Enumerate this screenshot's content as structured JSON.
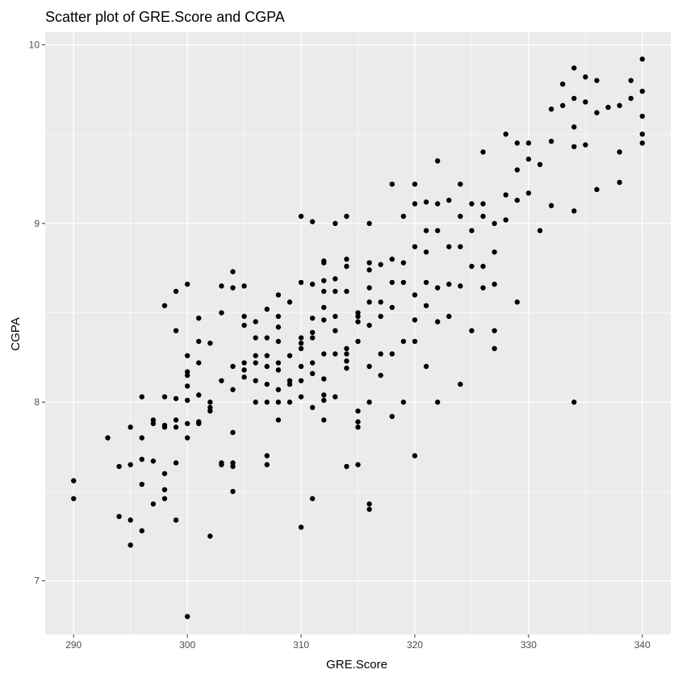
{
  "chart_data": {
    "type": "scatter",
    "title": "Scatter plot of GRE.Score and CGPA",
    "xlabel": "GRE.Score",
    "ylabel": "CGPA",
    "xlim": [
      287.5,
      342.5
    ],
    "ylim": [
      6.7,
      10.07
    ],
    "x_ticks": [
      290,
      300,
      310,
      320,
      330,
      340
    ],
    "y_ticks": [
      7,
      8,
      9,
      10
    ],
    "x_tick_labels": [
      "290",
      "300",
      "310",
      "320",
      "330",
      "340"
    ],
    "y_tick_labels": [
      "7",
      "8",
      "9",
      "10"
    ],
    "grid": true,
    "background": "#ebebeb",
    "grid_color": "#ffffff",
    "point_color": "#000000",
    "points": [
      [
        290,
        7.56
      ],
      [
        290,
        7.46
      ],
      [
        293,
        7.8
      ],
      [
        294,
        7.64
      ],
      [
        294,
        7.36
      ],
      [
        295,
        7.86
      ],
      [
        295,
        7.65
      ],
      [
        295,
        7.34
      ],
      [
        295,
        7.2
      ],
      [
        296,
        8.03
      ],
      [
        296,
        7.8
      ],
      [
        296,
        7.68
      ],
      [
        296,
        7.54
      ],
      [
        296,
        7.28
      ],
      [
        297,
        7.9
      ],
      [
        297,
        7.88
      ],
      [
        297,
        7.67
      ],
      [
        297,
        7.43
      ],
      [
        298,
        8.54
      ],
      [
        298,
        8.03
      ],
      [
        298,
        7.87
      ],
      [
        298,
        7.86
      ],
      [
        298,
        7.6
      ],
      [
        298,
        7.51
      ],
      [
        298,
        7.46
      ],
      [
        299,
        8.62
      ],
      [
        299,
        8.4
      ],
      [
        299,
        8.02
      ],
      [
        299,
        7.9
      ],
      [
        299,
        7.86
      ],
      [
        299,
        7.66
      ],
      [
        299,
        7.34
      ],
      [
        300,
        8.66
      ],
      [
        300,
        8.26
      ],
      [
        300,
        8.17
      ],
      [
        300,
        8.15
      ],
      [
        300,
        8.09
      ],
      [
        300,
        8.01
      ],
      [
        300,
        7.88
      ],
      [
        300,
        7.8
      ],
      [
        300,
        6.8
      ],
      [
        301,
        8.47
      ],
      [
        301,
        8.34
      ],
      [
        301,
        8.22
      ],
      [
        301,
        8.04
      ],
      [
        301,
        7.89
      ],
      [
        301,
        7.88
      ],
      [
        302,
        8.33
      ],
      [
        302,
        8.0
      ],
      [
        302,
        7.97
      ],
      [
        302,
        7.95
      ],
      [
        302,
        7.25
      ],
      [
        303,
        8.65
      ],
      [
        303,
        8.5
      ],
      [
        303,
        8.12
      ],
      [
        303,
        7.66
      ],
      [
        303,
        7.65
      ],
      [
        304,
        8.73
      ],
      [
        304,
        8.64
      ],
      [
        304,
        8.2
      ],
      [
        304,
        8.07
      ],
      [
        304,
        7.83
      ],
      [
        304,
        7.66
      ],
      [
        304,
        7.64
      ],
      [
        304,
        7.5
      ],
      [
        305,
        8.65
      ],
      [
        305,
        8.48
      ],
      [
        305,
        8.43
      ],
      [
        305,
        8.22
      ],
      [
        305,
        8.18
      ],
      [
        305,
        8.14
      ],
      [
        306,
        8.45
      ],
      [
        306,
        8.36
      ],
      [
        306,
        8.26
      ],
      [
        306,
        8.22
      ],
      [
        306,
        8.12
      ],
      [
        306,
        8.0
      ],
      [
        307,
        8.52
      ],
      [
        307,
        8.36
      ],
      [
        307,
        8.26
      ],
      [
        307,
        8.2
      ],
      [
        307,
        8.1
      ],
      [
        307,
        8.0
      ],
      [
        307,
        7.7
      ],
      [
        307,
        7.65
      ],
      [
        308,
        8.6
      ],
      [
        308,
        8.48
      ],
      [
        308,
        8.42
      ],
      [
        308,
        8.34
      ],
      [
        308,
        8.22
      ],
      [
        308,
        8.18
      ],
      [
        308,
        8.07
      ],
      [
        308,
        8.0
      ],
      [
        308,
        7.9
      ],
      [
        309,
        8.56
      ],
      [
        309,
        8.26
      ],
      [
        309,
        8.12
      ],
      [
        309,
        8.1
      ],
      [
        309,
        8.0
      ],
      [
        310,
        9.04
      ],
      [
        310,
        8.67
      ],
      [
        310,
        8.36
      ],
      [
        310,
        8.33
      ],
      [
        310,
        8.3
      ],
      [
        310,
        8.2
      ],
      [
        310,
        8.12
      ],
      [
        310,
        8.03
      ],
      [
        310,
        7.3
      ],
      [
        311,
        9.01
      ],
      [
        311,
        8.66
      ],
      [
        311,
        8.47
      ],
      [
        311,
        8.39
      ],
      [
        311,
        8.36
      ],
      [
        311,
        8.22
      ],
      [
        311,
        8.16
      ],
      [
        311,
        7.97
      ],
      [
        311,
        7.46
      ],
      [
        312,
        8.79
      ],
      [
        312,
        8.78
      ],
      [
        312,
        8.68
      ],
      [
        312,
        8.62
      ],
      [
        312,
        8.53
      ],
      [
        312,
        8.46
      ],
      [
        312,
        8.27
      ],
      [
        312,
        8.13
      ],
      [
        312,
        8.04
      ],
      [
        312,
        8.01
      ],
      [
        312,
        7.9
      ],
      [
        313,
        9.0
      ],
      [
        313,
        8.69
      ],
      [
        313,
        8.62
      ],
      [
        313,
        8.48
      ],
      [
        313,
        8.4
      ],
      [
        313,
        8.27
      ],
      [
        313,
        8.03
      ],
      [
        314,
        9.04
      ],
      [
        314,
        8.8
      ],
      [
        314,
        8.76
      ],
      [
        314,
        8.62
      ],
      [
        314,
        8.3
      ],
      [
        314,
        8.27
      ],
      [
        314,
        8.23
      ],
      [
        314,
        8.19
      ],
      [
        314,
        7.64
      ],
      [
        315,
        8.5
      ],
      [
        315,
        8.48
      ],
      [
        315,
        8.45
      ],
      [
        315,
        8.34
      ],
      [
        315,
        7.95
      ],
      [
        315,
        7.89
      ],
      [
        315,
        7.86
      ],
      [
        315,
        7.65
      ],
      [
        316,
        9.0
      ],
      [
        316,
        8.78
      ],
      [
        316,
        8.74
      ],
      [
        316,
        8.64
      ],
      [
        316,
        8.56
      ],
      [
        316,
        8.43
      ],
      [
        316,
        8.2
      ],
      [
        316,
        8.0
      ],
      [
        316,
        7.43
      ],
      [
        316,
        7.4
      ],
      [
        317,
        8.77
      ],
      [
        317,
        8.56
      ],
      [
        317,
        8.48
      ],
      [
        317,
        8.27
      ],
      [
        317,
        8.15
      ],
      [
        318,
        9.22
      ],
      [
        318,
        8.8
      ],
      [
        318,
        8.67
      ],
      [
        318,
        8.53
      ],
      [
        318,
        8.27
      ],
      [
        318,
        7.92
      ],
      [
        319,
        9.04
      ],
      [
        319,
        8.78
      ],
      [
        319,
        8.67
      ],
      [
        319,
        8.34
      ],
      [
        319,
        8.0
      ],
      [
        320,
        9.22
      ],
      [
        320,
        9.11
      ],
      [
        320,
        8.87
      ],
      [
        320,
        8.6
      ],
      [
        320,
        8.46
      ],
      [
        320,
        8.34
      ],
      [
        320,
        7.7
      ],
      [
        321,
        9.12
      ],
      [
        321,
        8.96
      ],
      [
        321,
        8.84
      ],
      [
        321,
        8.67
      ],
      [
        321,
        8.54
      ],
      [
        321,
        8.2
      ],
      [
        322,
        9.35
      ],
      [
        322,
        9.11
      ],
      [
        322,
        8.96
      ],
      [
        322,
        8.64
      ],
      [
        322,
        8.45
      ],
      [
        322,
        8.0
      ],
      [
        323,
        9.13
      ],
      [
        323,
        8.87
      ],
      [
        323,
        8.66
      ],
      [
        323,
        8.48
      ],
      [
        324,
        9.22
      ],
      [
        324,
        9.04
      ],
      [
        324,
        8.87
      ],
      [
        324,
        8.65
      ],
      [
        324,
        8.1
      ],
      [
        325,
        9.11
      ],
      [
        325,
        8.96
      ],
      [
        325,
        8.76
      ],
      [
        325,
        8.4
      ],
      [
        326,
        9.4
      ],
      [
        326,
        9.11
      ],
      [
        326,
        9.04
      ],
      [
        326,
        8.76
      ],
      [
        326,
        8.64
      ],
      [
        327,
        9.0
      ],
      [
        327,
        8.84
      ],
      [
        327,
        8.66
      ],
      [
        327,
        8.4
      ],
      [
        327,
        8.3
      ],
      [
        328,
        9.5
      ],
      [
        328,
        9.16
      ],
      [
        328,
        9.02
      ],
      [
        329,
        9.45
      ],
      [
        329,
        9.3
      ],
      [
        329,
        9.13
      ],
      [
        329,
        8.56
      ],
      [
        330,
        9.45
      ],
      [
        330,
        9.36
      ],
      [
        330,
        9.17
      ],
      [
        331,
        9.33
      ],
      [
        331,
        8.96
      ],
      [
        332,
        9.46
      ],
      [
        332,
        9.1
      ],
      [
        332,
        9.64
      ],
      [
        333,
        9.78
      ],
      [
        333,
        9.66
      ],
      [
        334,
        9.87
      ],
      [
        334,
        9.7
      ],
      [
        334,
        9.54
      ],
      [
        334,
        9.43
      ],
      [
        334,
        9.07
      ],
      [
        334,
        8.0
      ],
      [
        335,
        9.82
      ],
      [
        335,
        9.68
      ],
      [
        335,
        9.44
      ],
      [
        336,
        9.8
      ],
      [
        336,
        9.62
      ],
      [
        336,
        9.19
      ],
      [
        337,
        9.65
      ],
      [
        338,
        9.66
      ],
      [
        338,
        9.4
      ],
      [
        338,
        9.23
      ],
      [
        339,
        9.8
      ],
      [
        339,
        9.7
      ],
      [
        340,
        9.92
      ],
      [
        340,
        9.74
      ],
      [
        340,
        9.6
      ],
      [
        340,
        9.5
      ],
      [
        340,
        9.45
      ]
    ]
  }
}
